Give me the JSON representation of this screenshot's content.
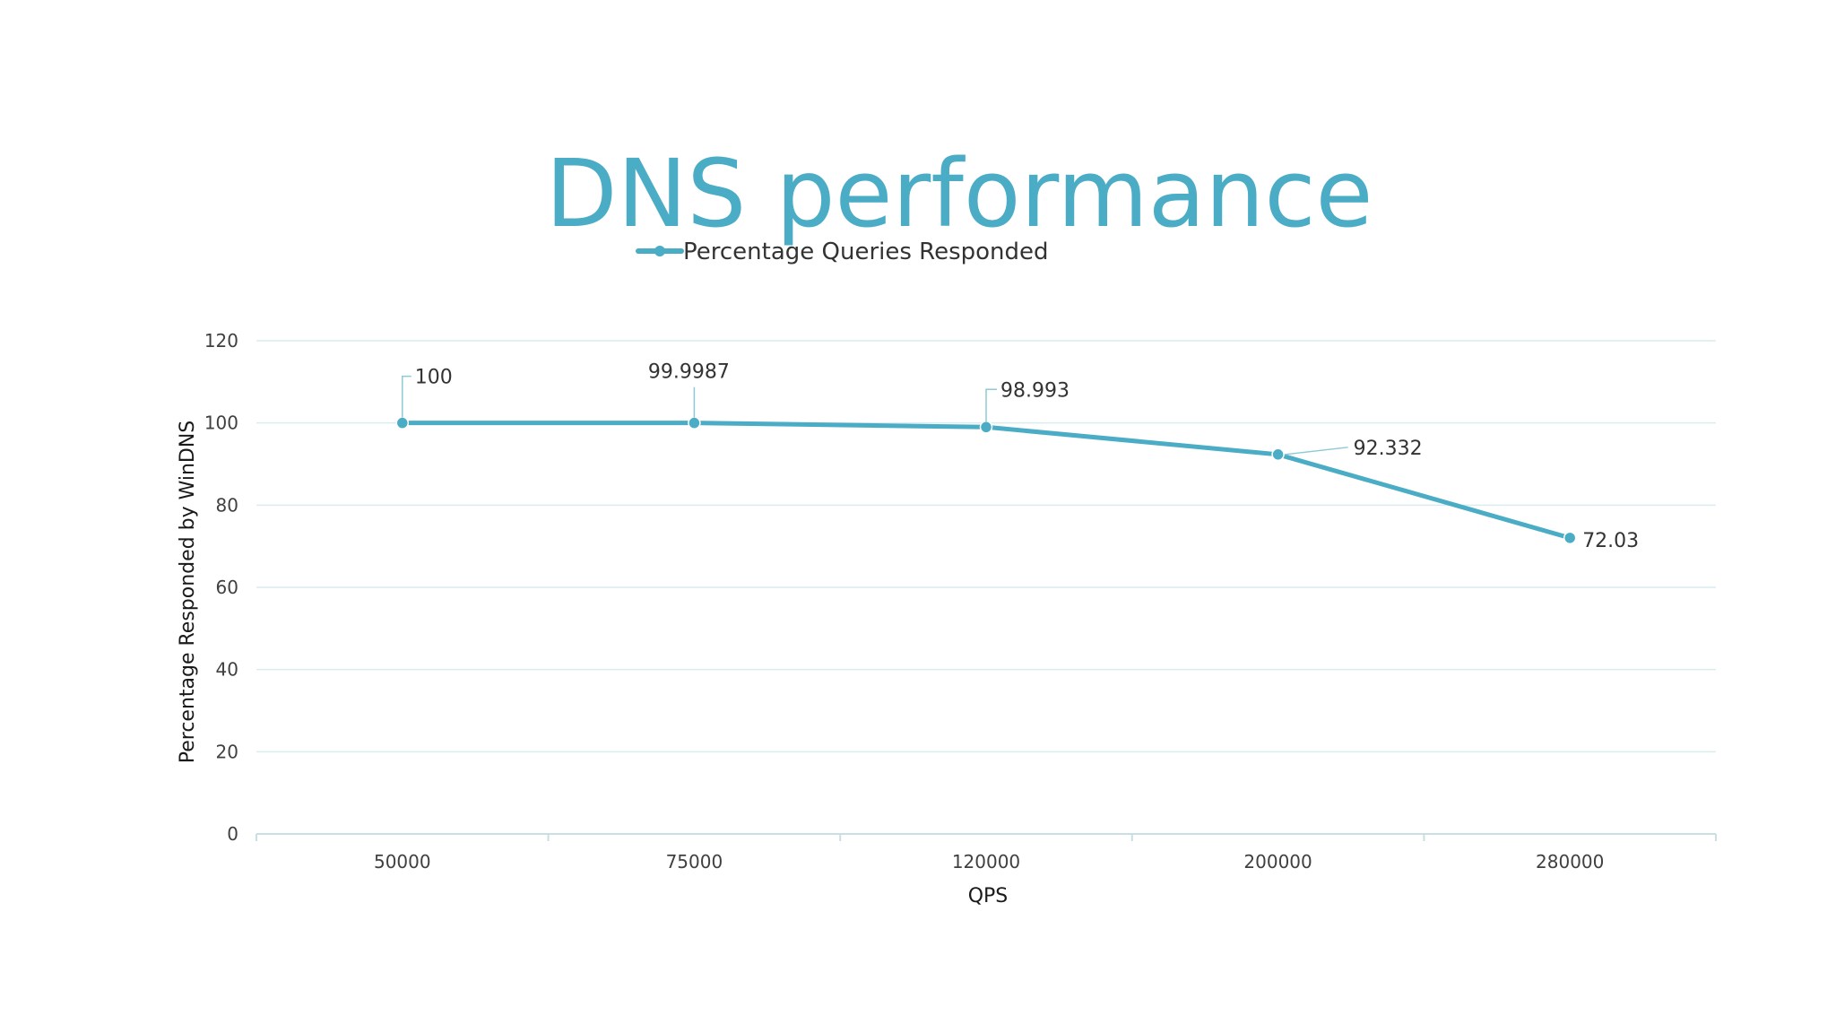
{
  "chart_data": {
    "type": "line",
    "title": "DNS performance",
    "xlabel": "QPS",
    "ylabel": "Percentage Responded by WinDNS",
    "categories": [
      "50000",
      "75000",
      "120000",
      "200000",
      "280000"
    ],
    "series": [
      {
        "name": "Percentage Queries Responded",
        "values": [
          100,
          99.9987,
          98.993,
          92.332,
          72.03
        ],
        "labels": [
          "100",
          "99.9987",
          "98.993",
          "92.332",
          "72.03"
        ]
      }
    ],
    "ylim": [
      0,
      120
    ],
    "yticks": [
      "0",
      "20",
      "40",
      "60",
      "80",
      "100",
      "120"
    ],
    "grid": true,
    "legend_position": "top",
    "colors": {
      "series": "#4bacc6",
      "title": "#4bacc6",
      "grid": "#d9ecee",
      "axis": "#c9dfe2",
      "leader": "#8ec9d6"
    }
  }
}
